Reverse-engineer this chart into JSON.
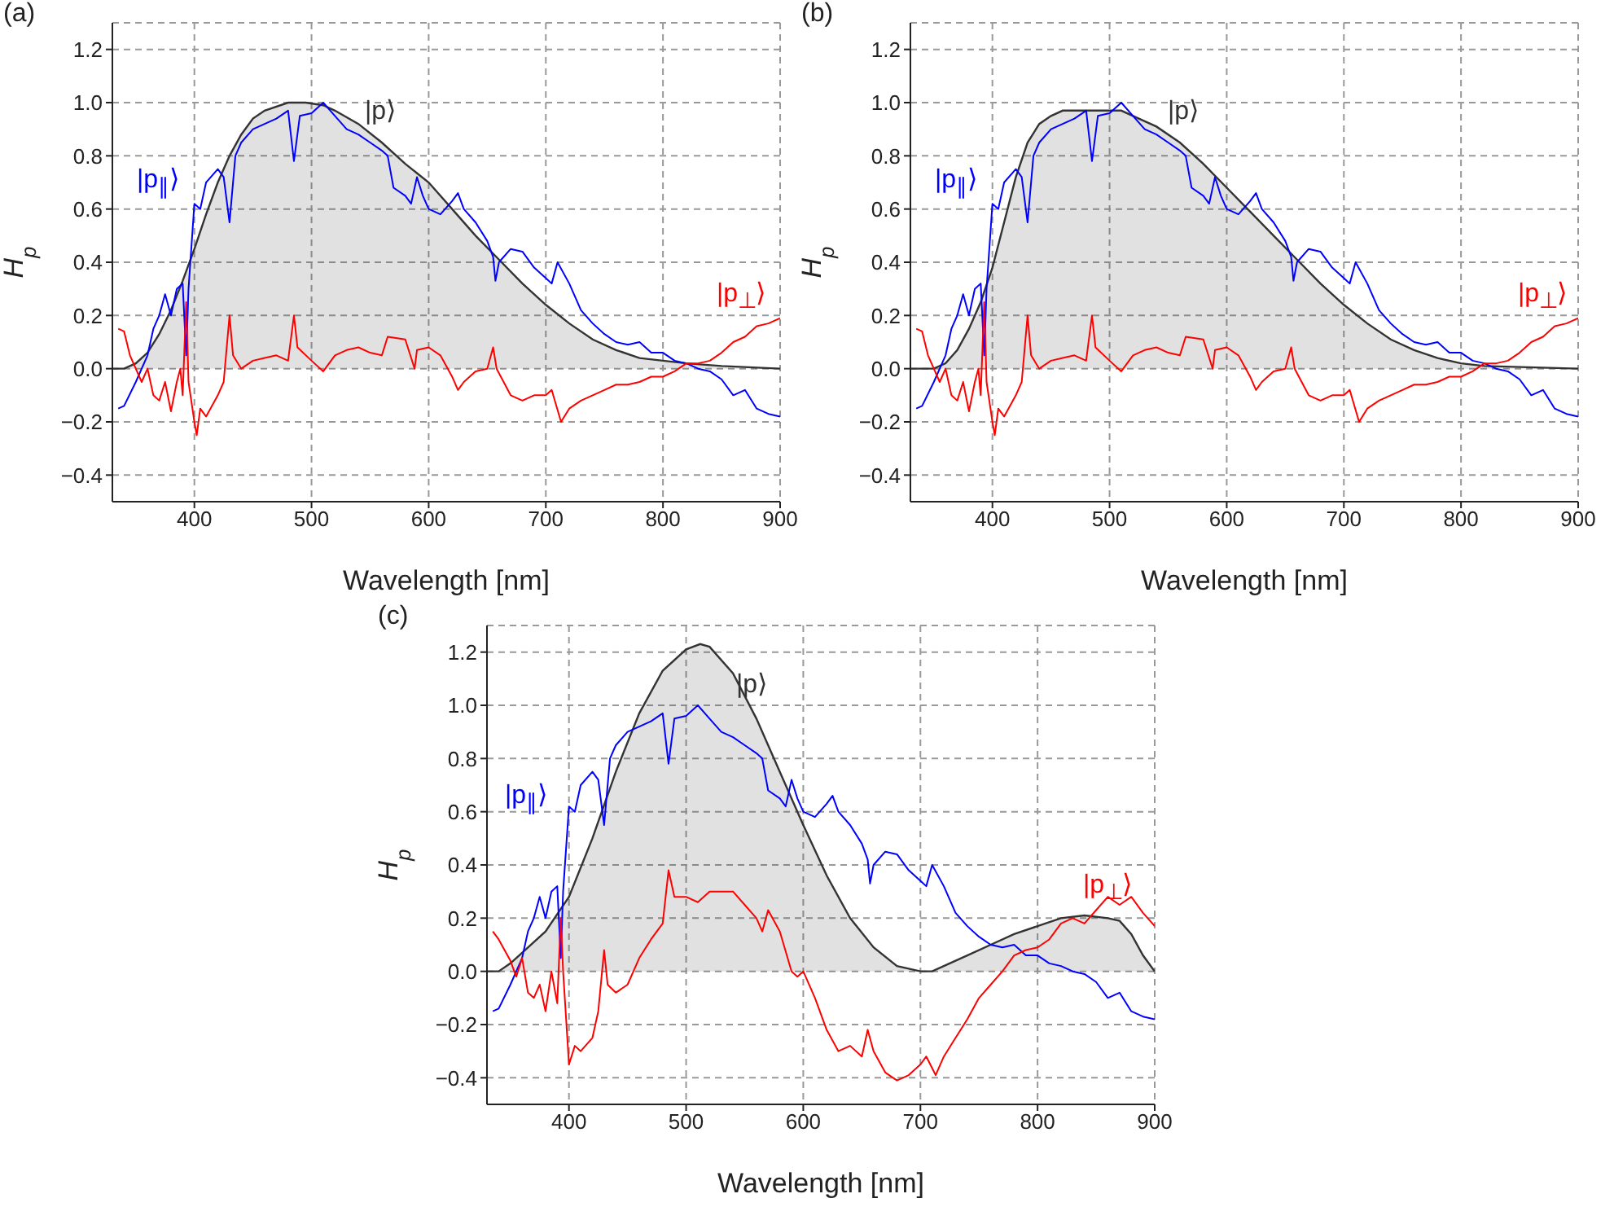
{
  "chart_data": [
    {
      "type": "line",
      "title": "(a)",
      "xlabel": "Wavelength [nm]",
      "ylabel": "H$_{p}$",
      "grid": true,
      "xlim": [
        330,
        900
      ],
      "xticks": [
        400,
        500,
        600,
        700,
        800,
        900
      ],
      "ylim": [
        -0.5,
        1.3
      ],
      "yticks": [
        {
          "value": -0.4,
          "label": "−0.4"
        },
        {
          "value": -0.2,
          "label": "−0.2"
        },
        {
          "value": 0,
          "label": "0.0"
        },
        0.2,
        0.4,
        0.6,
        0.8,
        {
          "value": 1,
          "label": "1.0"
        },
        1.2
      ],
      "series": [
        {
          "name": "|p⟩",
          "type": "area",
          "color": "#333333",
          "x": [
            330,
            340,
            350,
            360,
            370,
            380,
            390,
            400,
            410,
            420,
            430,
            440,
            450,
            460,
            480,
            495,
            510,
            520,
            540,
            560,
            580,
            600,
            620,
            640,
            660,
            680,
            700,
            720,
            740,
            760,
            780,
            800,
            820,
            850,
            900
          ],
          "values": [
            0,
            0,
            0.02,
            0.06,
            0.13,
            0.22,
            0.33,
            0.45,
            0.58,
            0.7,
            0.8,
            0.88,
            0.94,
            0.97,
            1.0,
            1.0,
            0.99,
            0.97,
            0.92,
            0.85,
            0.77,
            0.7,
            0.6,
            0.5,
            0.41,
            0.32,
            0.24,
            0.17,
            0.11,
            0.07,
            0.04,
            0.03,
            0.02,
            0.01,
            0
          ]
        },
        {
          "name": "|p$_{∥}$⟩",
          "color": "#0000ff",
          "x": [
            335,
            340,
            350,
            360,
            365,
            370,
            375,
            380,
            385,
            390,
            393,
            395,
            400,
            405,
            410,
            420,
            425,
            430,
            435,
            440,
            450,
            460,
            470,
            480,
            485,
            490,
            500,
            510,
            520,
            530,
            540,
            550,
            560,
            565,
            570,
            580,
            585,
            590,
            595,
            600,
            610,
            620,
            625,
            630,
            640,
            650,
            655,
            657,
            660,
            670,
            680,
            690,
            700,
            705,
            710,
            720,
            730,
            740,
            750,
            760,
            770,
            780,
            790,
            800,
            810,
            820,
            830,
            840,
            850,
            860,
            870,
            880,
            890,
            900
          ],
          "values": [
            -0.15,
            -0.14,
            -0.05,
            0.05,
            0.15,
            0.2,
            0.28,
            0.2,
            0.3,
            0.32,
            0.05,
            0.3,
            0.62,
            0.6,
            0.7,
            0.75,
            0.72,
            0.55,
            0.8,
            0.85,
            0.9,
            0.92,
            0.94,
            0.97,
            0.78,
            0.95,
            0.96,
            1.0,
            0.95,
            0.9,
            0.88,
            0.85,
            0.82,
            0.8,
            0.68,
            0.65,
            0.62,
            0.72,
            0.65,
            0.6,
            0.58,
            0.63,
            0.66,
            0.6,
            0.55,
            0.48,
            0.42,
            0.33,
            0.4,
            0.45,
            0.44,
            0.38,
            0.34,
            0.32,
            0.4,
            0.32,
            0.22,
            0.17,
            0.13,
            0.1,
            0.09,
            0.1,
            0.06,
            0.06,
            0.03,
            0.02,
            0.0,
            -0.01,
            -0.04,
            -0.1,
            -0.08,
            -0.15,
            -0.17,
            -0.18
          ]
        },
        {
          "name": "|p$_{⊥}$⟩",
          "color": "#ff0000",
          "x": [
            335,
            340,
            345,
            350,
            355,
            360,
            365,
            370,
            375,
            380,
            385,
            388,
            390,
            393,
            395,
            400,
            402,
            405,
            410,
            420,
            425,
            430,
            433,
            440,
            450,
            460,
            470,
            480,
            485,
            488,
            500,
            510,
            520,
            530,
            540,
            550,
            560,
            565,
            580,
            588,
            590,
            600,
            610,
            620,
            625,
            630,
            640,
            650,
            655,
            658,
            670,
            680,
            690,
            700,
            705,
            713,
            720,
            730,
            740,
            750,
            760,
            770,
            780,
            790,
            800,
            810,
            820,
            830,
            840,
            850,
            860,
            870,
            880,
            890,
            900
          ],
          "values": [
            0.15,
            0.14,
            0.05,
            0.0,
            -0.05,
            0.0,
            -0.1,
            -0.12,
            -0.05,
            -0.16,
            -0.05,
            0.0,
            -0.1,
            0.25,
            -0.05,
            -0.2,
            -0.25,
            -0.15,
            -0.18,
            -0.1,
            -0.05,
            0.2,
            0.05,
            0.0,
            0.03,
            0.04,
            0.05,
            0.03,
            0.2,
            0.08,
            0.03,
            -0.01,
            0.05,
            0.07,
            0.08,
            0.06,
            0.05,
            0.12,
            0.11,
            0.0,
            0.07,
            0.08,
            0.05,
            -0.03,
            -0.08,
            -0.05,
            -0.01,
            0.0,
            0.08,
            0.0,
            -0.1,
            -0.12,
            -0.1,
            -0.1,
            -0.08,
            -0.2,
            -0.15,
            -0.12,
            -0.1,
            -0.08,
            -0.06,
            -0.06,
            -0.05,
            -0.03,
            -0.03,
            -0.01,
            0.02,
            0.02,
            0.03,
            0.06,
            0.1,
            0.12,
            0.16,
            0.17,
            0.19
          ]
        }
      ]
    },
    {
      "type": "line",
      "title": "(b)",
      "xlabel": "Wavelength [nm]",
      "ylabel": "H$_{p}$",
      "grid": true,
      "xlim": [
        330,
        900
      ],
      "xticks": [
        400,
        500,
        600,
        700,
        800,
        900
      ],
      "ylim": [
        -0.5,
        1.3
      ],
      "yticks": [
        {
          "value": -0.4,
          "label": "−0.4"
        },
        {
          "value": -0.2,
          "label": "−0.2"
        },
        {
          "value": 0,
          "label": "0.0"
        },
        0.2,
        0.4,
        0.6,
        0.8,
        {
          "value": 1,
          "label": "1.0"
        },
        1.2
      ],
      "series": [
        {
          "name": "|p⟩",
          "type": "area",
          "color": "#333333",
          "x": [
            330,
            350,
            360,
            370,
            380,
            390,
            400,
            410,
            420,
            430,
            440,
            450,
            460,
            510,
            520,
            540,
            560,
            580,
            600,
            620,
            640,
            660,
            680,
            700,
            720,
            740,
            760,
            780,
            800,
            820,
            900
          ],
          "values": [
            0,
            0,
            0.02,
            0.07,
            0.15,
            0.25,
            0.38,
            0.55,
            0.72,
            0.85,
            0.92,
            0.95,
            0.97,
            0.97,
            0.95,
            0.91,
            0.85,
            0.77,
            0.68,
            0.59,
            0.5,
            0.41,
            0.32,
            0.24,
            0.17,
            0.11,
            0.07,
            0.04,
            0.02,
            0.01,
            0
          ]
        },
        {
          "name": "|p$_{∥}$⟩",
          "color": "#0000ff",
          "x": [
            335,
            340,
            350,
            360,
            365,
            370,
            375,
            380,
            385,
            390,
            393,
            395,
            400,
            405,
            410,
            420,
            425,
            430,
            435,
            440,
            450,
            460,
            470,
            480,
            485,
            490,
            500,
            510,
            520,
            530,
            540,
            550,
            560,
            565,
            570,
            580,
            585,
            590,
            595,
            600,
            610,
            620,
            625,
            630,
            640,
            650,
            655,
            657,
            660,
            670,
            680,
            690,
            700,
            705,
            710,
            720,
            730,
            740,
            750,
            760,
            770,
            780,
            790,
            800,
            810,
            820,
            830,
            840,
            850,
            860,
            870,
            880,
            890,
            900
          ],
          "values": [
            -0.15,
            -0.14,
            -0.05,
            0.05,
            0.15,
            0.2,
            0.28,
            0.2,
            0.3,
            0.32,
            0.05,
            0.3,
            0.62,
            0.6,
            0.7,
            0.75,
            0.72,
            0.55,
            0.8,
            0.85,
            0.9,
            0.92,
            0.94,
            0.97,
            0.78,
            0.95,
            0.96,
            1.0,
            0.95,
            0.9,
            0.88,
            0.85,
            0.82,
            0.8,
            0.68,
            0.65,
            0.62,
            0.72,
            0.65,
            0.6,
            0.58,
            0.63,
            0.66,
            0.6,
            0.55,
            0.48,
            0.42,
            0.33,
            0.4,
            0.45,
            0.44,
            0.38,
            0.34,
            0.32,
            0.4,
            0.32,
            0.22,
            0.17,
            0.13,
            0.1,
            0.09,
            0.1,
            0.06,
            0.06,
            0.03,
            0.02,
            0.0,
            -0.01,
            -0.04,
            -0.1,
            -0.08,
            -0.15,
            -0.17,
            -0.18
          ]
        },
        {
          "name": "|p$_{⊥}$⟩",
          "color": "#ff0000",
          "x": [
            335,
            340,
            345,
            350,
            355,
            360,
            365,
            370,
            375,
            380,
            385,
            388,
            390,
            393,
            395,
            400,
            402,
            405,
            410,
            420,
            425,
            430,
            433,
            440,
            450,
            460,
            470,
            480,
            485,
            488,
            500,
            510,
            520,
            530,
            540,
            550,
            560,
            565,
            580,
            588,
            590,
            600,
            610,
            620,
            625,
            630,
            640,
            650,
            655,
            658,
            670,
            680,
            690,
            700,
            705,
            713,
            720,
            730,
            740,
            750,
            760,
            770,
            780,
            790,
            800,
            810,
            820,
            830,
            840,
            850,
            860,
            870,
            880,
            890,
            900
          ],
          "values": [
            0.15,
            0.14,
            0.05,
            0.0,
            -0.05,
            0.0,
            -0.1,
            -0.12,
            -0.05,
            -0.16,
            -0.05,
            0.0,
            -0.1,
            0.25,
            -0.05,
            -0.2,
            -0.25,
            -0.15,
            -0.18,
            -0.1,
            -0.05,
            0.2,
            0.05,
            0.0,
            0.03,
            0.04,
            0.05,
            0.03,
            0.2,
            0.08,
            0.03,
            -0.01,
            0.05,
            0.07,
            0.08,
            0.06,
            0.05,
            0.12,
            0.11,
            0.0,
            0.07,
            0.08,
            0.05,
            -0.03,
            -0.08,
            -0.05,
            -0.01,
            0.0,
            0.08,
            0.0,
            -0.1,
            -0.12,
            -0.1,
            -0.1,
            -0.08,
            -0.2,
            -0.15,
            -0.12,
            -0.1,
            -0.08,
            -0.06,
            -0.06,
            -0.05,
            -0.03,
            -0.03,
            -0.01,
            0.02,
            0.02,
            0.03,
            0.06,
            0.1,
            0.12,
            0.16,
            0.17,
            0.19
          ]
        }
      ]
    },
    {
      "type": "line",
      "title": "(c)",
      "xlabel": "Wavelength [nm]",
      "ylabel": "H$_{p}$",
      "grid": true,
      "xlim": [
        330,
        900
      ],
      "xticks": [
        400,
        500,
        600,
        700,
        800,
        900
      ],
      "ylim": [
        -0.5,
        1.3
      ],
      "yticks": [
        {
          "value": -0.4,
          "label": "−0.4"
        },
        {
          "value": -0.2,
          "label": "−0.2"
        },
        {
          "value": 0,
          "label": "0.0"
        },
        0.2,
        0.4,
        0.6,
        0.8,
        {
          "value": 1,
          "label": "1.0"
        },
        1.2
      ],
      "series": [
        {
          "name": "|p⟩",
          "type": "area",
          "color": "#333333",
          "x": [
            330,
            340,
            350,
            360,
            380,
            400,
            420,
            440,
            460,
            480,
            500,
            512,
            520,
            540,
            560,
            580,
            600,
            620,
            640,
            660,
            680,
            700,
            710,
            720,
            740,
            760,
            780,
            800,
            820,
            840,
            860,
            870,
            880,
            890,
            900
          ],
          "values": [
            0,
            0,
            0.03,
            0.07,
            0.15,
            0.28,
            0.5,
            0.75,
            0.97,
            1.13,
            1.21,
            1.23,
            1.22,
            1.12,
            0.95,
            0.75,
            0.55,
            0.36,
            0.2,
            0.09,
            0.02,
            0,
            0,
            0.02,
            0.06,
            0.1,
            0.14,
            0.17,
            0.2,
            0.21,
            0.2,
            0.19,
            0.14,
            0.06,
            0
          ]
        },
        {
          "name": "|p$_{∥}$⟩",
          "color": "#0000ff",
          "x": [
            335,
            340,
            350,
            360,
            365,
            370,
            375,
            380,
            385,
            390,
            393,
            395,
            400,
            405,
            410,
            420,
            425,
            430,
            435,
            440,
            450,
            460,
            470,
            480,
            485,
            490,
            500,
            510,
            520,
            530,
            540,
            550,
            560,
            565,
            570,
            580,
            585,
            590,
            595,
            600,
            610,
            620,
            625,
            630,
            640,
            650,
            655,
            657,
            660,
            670,
            680,
            690,
            700,
            705,
            710,
            720,
            730,
            740,
            750,
            760,
            770,
            780,
            790,
            800,
            810,
            820,
            830,
            840,
            850,
            860,
            870,
            880,
            890,
            900
          ],
          "values": [
            -0.15,
            -0.14,
            -0.05,
            0.05,
            0.15,
            0.2,
            0.28,
            0.2,
            0.3,
            0.32,
            0.05,
            0.3,
            0.62,
            0.6,
            0.7,
            0.75,
            0.72,
            0.55,
            0.8,
            0.85,
            0.9,
            0.92,
            0.94,
            0.97,
            0.78,
            0.95,
            0.96,
            1.0,
            0.95,
            0.9,
            0.88,
            0.85,
            0.82,
            0.8,
            0.68,
            0.65,
            0.62,
            0.72,
            0.65,
            0.6,
            0.58,
            0.63,
            0.66,
            0.6,
            0.55,
            0.48,
            0.42,
            0.33,
            0.4,
            0.45,
            0.44,
            0.38,
            0.34,
            0.32,
            0.4,
            0.32,
            0.22,
            0.17,
            0.13,
            0.1,
            0.09,
            0.1,
            0.06,
            0.06,
            0.03,
            0.02,
            0.0,
            -0.01,
            -0.04,
            -0.1,
            -0.08,
            -0.15,
            -0.17,
            -0.18
          ]
        },
        {
          "name": "|p$_{⊥}$⟩",
          "color": "#ff0000",
          "x": [
            335,
            340,
            350,
            355,
            360,
            365,
            370,
            375,
            380,
            385,
            390,
            393,
            395,
            400,
            405,
            410,
            420,
            425,
            430,
            433,
            440,
            450,
            460,
            470,
            480,
            485,
            490,
            500,
            510,
            520,
            530,
            540,
            550,
            560,
            565,
            570,
            580,
            590,
            595,
            600,
            610,
            620,
            630,
            640,
            650,
            655,
            660,
            670,
            680,
            690,
            700,
            705,
            713,
            720,
            730,
            740,
            750,
            760,
            770,
            780,
            790,
            800,
            810,
            820,
            830,
            840,
            850,
            860,
            870,
            880,
            890,
            900
          ],
          "values": [
            0.15,
            0.12,
            0.04,
            -0.02,
            0.05,
            -0.08,
            -0.1,
            -0.05,
            -0.15,
            0.0,
            -0.12,
            0.2,
            0.0,
            -0.35,
            -0.28,
            -0.3,
            -0.25,
            -0.15,
            0.08,
            -0.05,
            -0.08,
            -0.05,
            0.05,
            0.12,
            0.18,
            0.38,
            0.28,
            0.28,
            0.26,
            0.3,
            0.3,
            0.3,
            0.25,
            0.2,
            0.15,
            0.23,
            0.15,
            0.0,
            -0.02,
            0.0,
            -0.1,
            -0.22,
            -0.3,
            -0.28,
            -0.32,
            -0.22,
            -0.3,
            -0.38,
            -0.41,
            -0.39,
            -0.35,
            -0.32,
            -0.39,
            -0.32,
            -0.25,
            -0.18,
            -0.1,
            -0.05,
            0.0,
            0.06,
            0.08,
            0.09,
            0.12,
            0.18,
            0.2,
            0.18,
            0.23,
            0.28,
            0.25,
            0.28,
            0.22,
            0.17
          ]
        }
      ]
    }
  ]
}
